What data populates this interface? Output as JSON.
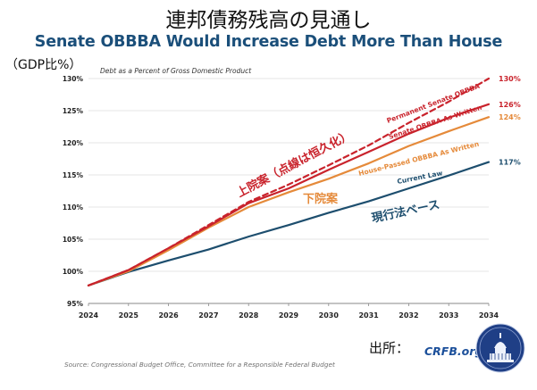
{
  "header": {
    "main_title": "連邦債務残高の見通し",
    "subtitle": "Senate OBBBA Would Increase Debt More Than House",
    "gdp_label": "（GDP比%）"
  },
  "footer": {
    "source_line": "Source: Congressional Budget Office, Committee for a Responsible Federal Budget",
    "source_label": "出所：",
    "org": "CRFB.org"
  },
  "colors": {
    "permanent": "#c9232c",
    "senate": "#c9232c",
    "house": "#e58a3a",
    "current": "#1d4e6e",
    "grid": "#dcdcdc",
    "subtitle": "#1b4f7a"
  },
  "chart_data": {
    "type": "line",
    "title": "Debt as a Percent of Gross Domestic Product",
    "xlabel": "",
    "ylabel": "",
    "x": [
      2024,
      2025,
      2026,
      2027,
      2028,
      2029,
      2030,
      2031,
      2032,
      2033,
      2034
    ],
    "x_tick_labels": [
      "2024",
      "2025",
      "2026",
      "2027",
      "2028",
      "2029",
      "2030",
      "2031",
      "2032",
      "2033",
      "2034"
    ],
    "ylim": [
      95,
      130
    ],
    "y_ticks": [
      95,
      100,
      105,
      110,
      115,
      120,
      125,
      130
    ],
    "y_tick_labels": [
      "95%",
      "100%",
      "105%",
      "110%",
      "115%",
      "120%",
      "125%",
      "130%"
    ],
    "grid": true,
    "series": [
      {
        "key": "permanent",
        "name": "Permanent Senate OBBBA",
        "style": "dashed",
        "values": [
          97.8,
          100.2,
          103.6,
          107.2,
          110.8,
          113.5,
          116.5,
          119.6,
          123.1,
          126.4,
          130.0
        ],
        "end_label": "130%"
      },
      {
        "key": "senate",
        "name": "Senate OBBBA As Written",
        "style": "solid",
        "values": [
          97.8,
          100.2,
          103.6,
          107.0,
          110.6,
          112.9,
          115.8,
          118.6,
          121.4,
          123.9,
          126.0
        ],
        "end_label": "126%"
      },
      {
        "key": "house",
        "name": "House-Passed OBBBA As Written",
        "style": "solid",
        "values": [
          97.8,
          100.0,
          103.3,
          106.8,
          110.0,
          112.3,
          114.4,
          116.8,
          119.5,
          121.8,
          124.0
        ],
        "end_label": "124%"
      },
      {
        "key": "current",
        "name": "Current Law",
        "style": "solid",
        "values": [
          97.8,
          99.9,
          101.7,
          103.4,
          105.4,
          107.2,
          109.1,
          110.9,
          112.9,
          114.9,
          117.0
        ],
        "end_label": "117%"
      }
    ],
    "annotations": [
      {
        "key": "senate_jp",
        "text": "上院案（点線は恒久化）"
      },
      {
        "key": "house_jp",
        "text": "下院案"
      },
      {
        "key": "current_jp",
        "text": "現行法ベース"
      }
    ]
  }
}
